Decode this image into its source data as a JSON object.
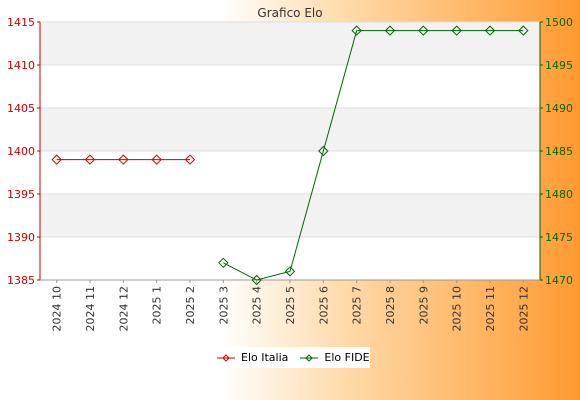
{
  "chart_data": {
    "type": "line",
    "title": "Grafico Elo",
    "categories": [
      "2024 10",
      "2024 11",
      "2024 12",
      "2025 1",
      "2025 2",
      "2025 3",
      "2025 4",
      "2025 5",
      "2025 6",
      "2025 7",
      "2025 8",
      "2025 9",
      "2025 10",
      "2025 11",
      "2025 12"
    ],
    "series": [
      {
        "name": "Elo Italia",
        "axis": "left",
        "color": "#cc0000",
        "values": [
          1399,
          1399,
          1399,
          1399,
          1399,
          null,
          null,
          null,
          null,
          null,
          null,
          null,
          null,
          null,
          null
        ]
      },
      {
        "name": "Elo FIDE",
        "axis": "right",
        "color": "#006600",
        "values": [
          null,
          null,
          null,
          null,
          null,
          1472,
          1470,
          1471,
          1485,
          1499,
          1499,
          1499,
          1499,
          1499,
          1499
        ]
      }
    ],
    "y_left": {
      "min": 1385,
      "max": 1415,
      "ticks": [
        1385,
        1390,
        1395,
        1400,
        1405,
        1410,
        1415
      ],
      "color": "#cc0000"
    },
    "y_right": {
      "min": 1470,
      "max": 1500,
      "ticks": [
        1470,
        1475,
        1480,
        1485,
        1490,
        1495,
        1500
      ],
      "color": "#006600"
    },
    "grid": true,
    "legend_position": "bottom-center"
  }
}
